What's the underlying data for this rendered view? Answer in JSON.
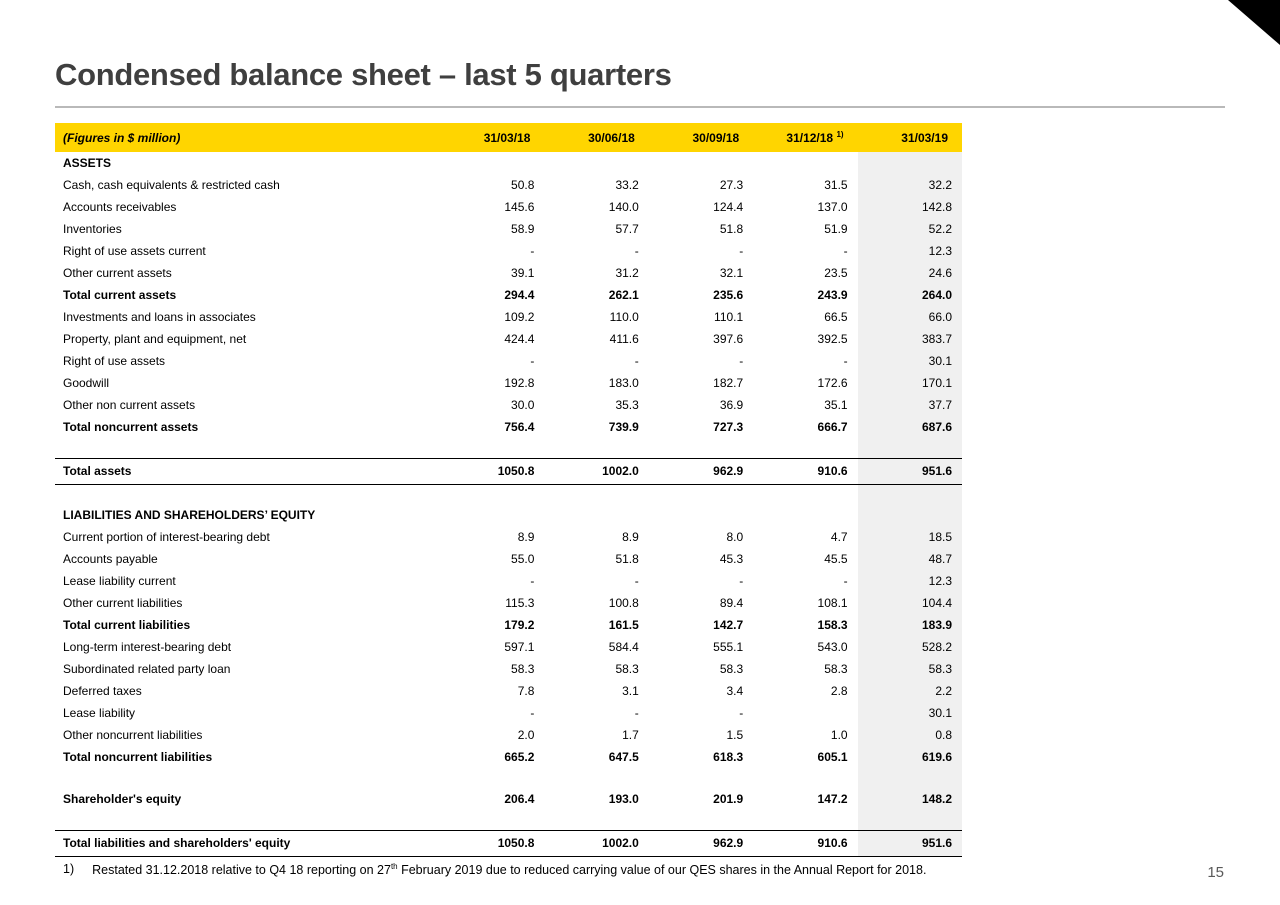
{
  "slide": {
    "title": "Condensed balance sheet – last 5 quarters",
    "page_number": "15"
  },
  "colors": {
    "header_bg": "#ffd500",
    "last_col_bg": "#f0f0f0",
    "title_color": "#3f3f3f",
    "rule_color": "#b9b9b9",
    "corner_color": "#000000",
    "page_number_color": "#595959"
  },
  "table": {
    "caption": "(Figures in $ million)",
    "columns": [
      "31/03/18",
      "30/06/18",
      "30/09/18",
      "31/12/18",
      "31/03/19"
    ],
    "column_footnote_sup": "1)",
    "rows": [
      {
        "type": "section",
        "label": "ASSETS"
      },
      {
        "type": "item",
        "label": "Cash, cash equivalents & restricted cash",
        "values": [
          "50.8",
          "33.2",
          "27.3",
          "31.5",
          "32.2"
        ]
      },
      {
        "type": "item",
        "label": "Accounts receivables",
        "values": [
          "145.6",
          "140.0",
          "124.4",
          "137.0",
          "142.8"
        ]
      },
      {
        "type": "item",
        "label": "Inventories",
        "values": [
          "58.9",
          "57.7",
          "51.8",
          "51.9",
          "52.2"
        ]
      },
      {
        "type": "item",
        "label": "Right of use assets current",
        "values": [
          "-",
          "-",
          "-",
          "-",
          "12.3"
        ]
      },
      {
        "type": "item",
        "label": "Other current assets",
        "values": [
          "39.1",
          "31.2",
          "32.1",
          "23.5",
          "24.6"
        ]
      },
      {
        "type": "subtotal",
        "label": "Total current assets",
        "values": [
          "294.4",
          "262.1",
          "235.6",
          "243.9",
          "264.0"
        ]
      },
      {
        "type": "item",
        "label": "Investments and loans in associates",
        "values": [
          "109.2",
          "110.0",
          "110.1",
          "66.5",
          "66.0"
        ]
      },
      {
        "type": "item",
        "label": "Property, plant and equipment, net",
        "values": [
          "424.4",
          "411.6",
          "397.6",
          "392.5",
          "383.7"
        ]
      },
      {
        "type": "item",
        "label": "Right of use assets",
        "values": [
          "-",
          "-",
          "-",
          "-",
          "30.1"
        ]
      },
      {
        "type": "item",
        "label": "Goodwill",
        "values": [
          "192.8",
          "183.0",
          "182.7",
          "172.6",
          "170.1"
        ]
      },
      {
        "type": "item",
        "label": "Other non current assets",
        "values": [
          "30.0",
          "35.3",
          "36.9",
          "35.1",
          "37.7"
        ]
      },
      {
        "type": "subtotal",
        "label": "Total noncurrent assets",
        "values": [
          "756.4",
          "739.9",
          "727.3",
          "666.7",
          "687.6"
        ]
      },
      {
        "type": "spacer"
      },
      {
        "type": "grandtotal",
        "label": "Total assets",
        "values": [
          "1050.8",
          "1002.0",
          "962.9",
          "910.6",
          "951.6"
        ]
      },
      {
        "type": "spacer"
      },
      {
        "type": "section",
        "label": "LIABILITIES AND SHAREHOLDERS’ EQUITY"
      },
      {
        "type": "item",
        "label": "Current portion of interest-bearing debt",
        "values": [
          "8.9",
          "8.9",
          "8.0",
          "4.7",
          "18.5"
        ]
      },
      {
        "type": "item",
        "label": "Accounts payable",
        "values": [
          "55.0",
          "51.8",
          "45.3",
          "45.5",
          "48.7"
        ]
      },
      {
        "type": "item",
        "label": "Lease liability current",
        "values": [
          "-",
          "-",
          "-",
          "-",
          "12.3"
        ]
      },
      {
        "type": "item",
        "label": "Other current liabilities",
        "values": [
          "115.3",
          "100.8",
          "89.4",
          "108.1",
          "104.4"
        ]
      },
      {
        "type": "subtotal",
        "label": "Total current liabilities",
        "values": [
          "179.2",
          "161.5",
          "142.7",
          "158.3",
          "183.9"
        ]
      },
      {
        "type": "item",
        "label": "Long-term interest-bearing debt",
        "values": [
          "597.1",
          "584.4",
          "555.1",
          "543.0",
          "528.2"
        ]
      },
      {
        "type": "item",
        "label": "Subordinated related party loan",
        "values": [
          "58.3",
          "58.3",
          "58.3",
          "58.3",
          "58.3"
        ]
      },
      {
        "type": "item",
        "label": "Deferred taxes",
        "values": [
          "7.8",
          "3.1",
          "3.4",
          "2.8",
          "2.2"
        ]
      },
      {
        "type": "item",
        "label": "Lease liability",
        "values": [
          "-",
          "-",
          "-",
          "",
          "30.1"
        ]
      },
      {
        "type": "item",
        "label": "Other noncurrent liabilities",
        "values": [
          "2.0",
          "1.7",
          "1.5",
          "1.0",
          "0.8"
        ]
      },
      {
        "type": "subtotal",
        "label": "Total noncurrent liabilities",
        "values": [
          "665.2",
          "647.5",
          "618.3",
          "605.1",
          "619.6"
        ]
      },
      {
        "type": "spacer"
      },
      {
        "type": "subtotal",
        "label": "Shareholder's equity",
        "values": [
          "206.4",
          "193.0",
          "201.9",
          "147.2",
          "148.2"
        ]
      },
      {
        "type": "spacer"
      },
      {
        "type": "grandtotal",
        "label": "Total liabilities and shareholders' equity",
        "values": [
          "1050.8",
          "1002.0",
          "962.9",
          "910.6",
          "951.6"
        ]
      }
    ]
  },
  "footnote": {
    "marker": "1)",
    "text_before_sup": "Restated 31.12.2018 relative to Q4 18 reporting on 27",
    "superscript": "th",
    "text_after_sup": " February 2019 due to reduced carrying value of our QES shares in the Annual Report for 2018."
  }
}
